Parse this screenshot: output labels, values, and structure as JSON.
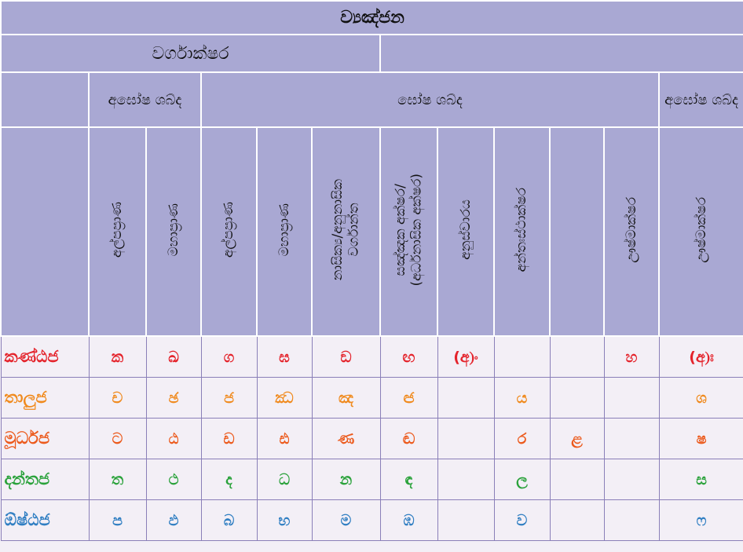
{
  "header": {
    "title": "ව්‍යඤ්ජන"
  },
  "subheader": {
    "title": "වර්ගාක්ෂර"
  },
  "groups": [
    "අඝෝෂ ශබ්ද",
    "ඝෝෂ ශබ්ද",
    "අඝෝෂ ශබ්ද"
  ],
  "column_labels": [
    "අල්පප්‍රාණ",
    "මහාප්‍රාණ",
    "අල්පප්‍රාණ",
    "මහාප්‍රාණ",
    "නාසික්‍ය/අනුනාසික\nවර්ගාන්ත",
    "සඤ්ඤක අක්ෂර/\n(අර්ධනාසික අක්ෂර)",
    "අනුස්වාරය",
    "අන්තඃස්ථාක්ෂර",
    null,
    "ඌෂ්මාක්ෂර",
    "ඌෂ්මාක්ෂර"
  ],
  "rows": [
    {
      "label": "කණ්ඨජ",
      "cells": [
        "ක",
        "ඛ",
        "ග",
        "ඝ",
        "ඞ",
        "ඟ",
        "(අ)ං",
        null,
        null,
        "හ",
        "(අ)ඃ"
      ]
    },
    {
      "label": "තාලුජ",
      "cells": [
        "ච",
        "ඡ",
        "ජ",
        "ඣ",
        "ඤ",
        "ඦ",
        null,
        "ය",
        null,
        null,
        "ශ"
      ]
    },
    {
      "label": "මූර්ධජ",
      "cells": [
        "ට",
        "ඨ",
        "ඩ",
        "ඪ",
        "ණ",
        "ඬ",
        null,
        "ර",
        "ළ",
        null,
        "ෂ"
      ]
    },
    {
      "label": "දන්තජ",
      "cells": [
        "ත",
        "ථ",
        "ද",
        "ධ",
        "න",
        "ඳ",
        null,
        "ල",
        null,
        null,
        "ස"
      ]
    },
    {
      "label": "ඕෂ්ඨජ",
      "cells": [
        "ප",
        "ඵ",
        "බ",
        "භ",
        "ම",
        "ඹ",
        null,
        "ව",
        null,
        null,
        "ෆ"
      ]
    }
  ]
}
